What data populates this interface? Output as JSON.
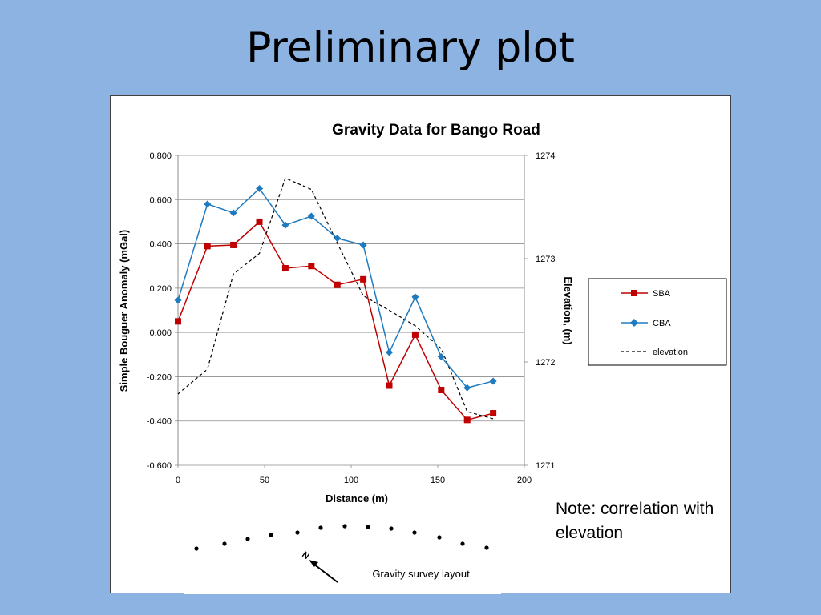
{
  "slide": {
    "title": "Preliminary plot",
    "note": "Note: correlation with elevation"
  },
  "colors": {
    "background": "#8db3e2",
    "sba": "#c00000",
    "cba": "#1f7bbf",
    "elevation": "#000000"
  },
  "chart_data": {
    "type": "line",
    "title": "Gravity Data for Bango Road",
    "xlabel": "Distance (m)",
    "ylabel": "Simple Bouguer Anomaly (mGal)",
    "y2label": "Elevation, (m)",
    "xlim": [
      0,
      200
    ],
    "ylim": [
      -0.6,
      0.8
    ],
    "y2lim": [
      1271,
      1274
    ],
    "x_ticks": [
      "0",
      "50",
      "100",
      "150",
      "200"
    ],
    "y_ticks": [
      "0.800",
      "0.600",
      "0.400",
      "0.200",
      "0.000",
      "-0.200",
      "-0.400",
      "-0.600"
    ],
    "y2_ticks": [
      "1274",
      "1273",
      "1272",
      "1271"
    ],
    "grid": "horizontal",
    "legend_position": "right",
    "series": [
      {
        "name": "SBA",
        "axis": "left",
        "marker": "square",
        "x": [
          0,
          17,
          32,
          47,
          62,
          77,
          92,
          107,
          122,
          137,
          152,
          167,
          182
        ],
        "y": [
          0.05,
          0.39,
          0.395,
          0.5,
          0.29,
          0.3,
          0.215,
          0.24,
          -0.24,
          -0.01,
          -0.26,
          -0.395,
          -0.365
        ]
      },
      {
        "name": "CBA",
        "axis": "left",
        "marker": "diamond",
        "x": [
          0,
          17,
          32,
          47,
          62,
          77,
          92,
          107,
          122,
          137,
          152,
          167,
          182
        ],
        "y": [
          0.145,
          0.58,
          0.54,
          0.65,
          0.485,
          0.525,
          0.425,
          0.395,
          -0.09,
          0.16,
          -0.11,
          -0.25,
          -0.22
        ]
      },
      {
        "name": "elevation",
        "axis": "right",
        "marker": "none",
        "dash": true,
        "x": [
          0,
          17,
          32,
          47,
          62,
          77,
          92,
          107,
          122,
          137,
          152,
          167,
          182
        ],
        "y": [
          1271.69,
          1271.93,
          1272.85,
          1273.05,
          1273.78,
          1273.67,
          1273.15,
          1272.64,
          1272.5,
          1272.35,
          1272.13,
          1271.52,
          1271.45
        ]
      }
    ]
  },
  "survey_layout": {
    "caption": "Gravity survey layout",
    "north_label": "N"
  }
}
